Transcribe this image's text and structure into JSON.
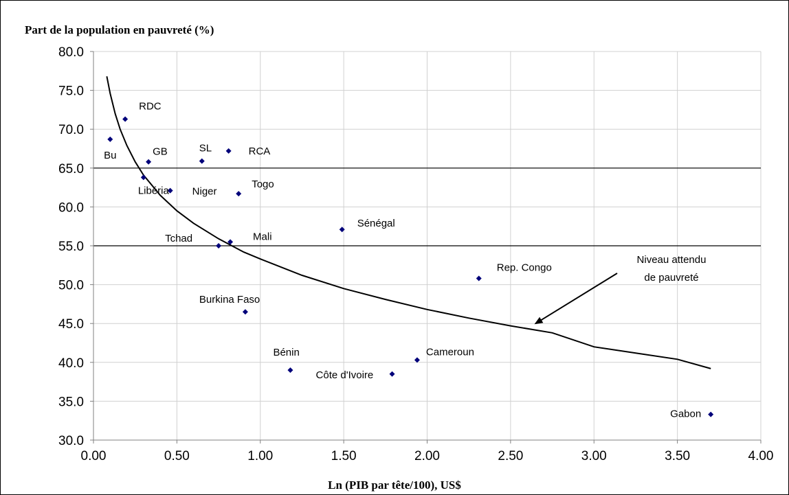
{
  "chart_data": {
    "type": "scatter",
    "title": "",
    "ylabel": "Part de la population en pauvreté (%)",
    "xlabel": "Ln (PIB par tête/100), US$",
    "xlim": [
      0,
      4
    ],
    "ylim": [
      30,
      80
    ],
    "x_ticks": [
      "0.00",
      "0.50",
      "1.00",
      "1.50",
      "2.00",
      "2.50",
      "3.00",
      "3.50",
      "4.00"
    ],
    "y_ticks": [
      "30.0",
      "35.0",
      "40.0",
      "45.0",
      "50.0",
      "55.0",
      "60.0",
      "65.0",
      "70.0",
      "75.0",
      "80.0"
    ],
    "grid": true,
    "reference_lines": [
      55,
      65
    ],
    "marker_color": "#00007a",
    "points": [
      {
        "label": "Bu",
        "x": 0.1,
        "y": 68.7
      },
      {
        "label": "RDC",
        "x": 0.19,
        "y": 71.3
      },
      {
        "label": "Libéria",
        "x": 0.3,
        "y": 63.8
      },
      {
        "label": "GB",
        "x": 0.33,
        "y": 65.8
      },
      {
        "label": "Niger",
        "x": 0.46,
        "y": 62.1
      },
      {
        "label": "SL",
        "x": 0.65,
        "y": 65.9
      },
      {
        "label": "Tchad",
        "x": 0.75,
        "y": 55.0
      },
      {
        "label": "RCA",
        "x": 0.81,
        "y": 67.2
      },
      {
        "label": "Mali",
        "x": 0.82,
        "y": 55.5
      },
      {
        "label": "Togo",
        "x": 0.87,
        "y": 61.7
      },
      {
        "label": "Burkina Faso",
        "x": 0.91,
        "y": 46.5
      },
      {
        "label": "Bénin",
        "x": 1.18,
        "y": 39.0
      },
      {
        "label": "Sénégal",
        "x": 1.49,
        "y": 57.1
      },
      {
        "label": "Côte d'Ivoire",
        "x": 1.79,
        "y": 38.5
      },
      {
        "label": "Cameroun",
        "x": 1.94,
        "y": 40.3
      },
      {
        "label": "Rep. Congo",
        "x": 2.31,
        "y": 50.8
      },
      {
        "label": "Gabon",
        "x": 3.7,
        "y": 33.3
      }
    ],
    "curve": {
      "x": [
        0.08,
        0.1,
        0.13,
        0.16,
        0.2,
        0.25,
        0.3,
        0.4,
        0.5,
        0.6,
        0.75,
        0.9,
        1.0,
        1.25,
        1.5,
        1.75,
        2.0,
        2.25,
        2.5,
        2.75,
        3.0,
        3.25,
        3.5,
        3.7
      ],
      "y": [
        76.8,
        74.6,
        72.0,
        70.0,
        67.9,
        65.8,
        64.1,
        61.5,
        59.5,
        57.9,
        55.9,
        54.2,
        53.3,
        51.2,
        49.5,
        48.1,
        46.8,
        45.7,
        44.7,
        43.8,
        42.0,
        41.2,
        40.4,
        39.2
      ]
    },
    "annotation": {
      "lines": [
        "Niveau attendu",
        "de pauvreté"
      ],
      "arrow_to": {
        "x": 2.65,
        "y": 45.0
      }
    }
  }
}
